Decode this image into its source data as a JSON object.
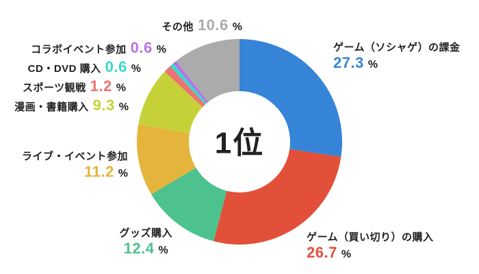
{
  "chart_data": {
    "type": "pie",
    "variant": "donut",
    "center_text": "1位",
    "unit": "%",
    "start_angle_deg": 0,
    "rotation": "clockwise",
    "inner_radius_ratio": 0.49,
    "background": "#ffffff",
    "label_text_color": "#1f1f1f",
    "legend_position": "callouts-around-donut",
    "segments": [
      {
        "id": "soshage",
        "label": "ゲーム（ソシャゲ）の課金",
        "value": 27.3,
        "color": "#3684D8"
      },
      {
        "id": "kaikiri",
        "label": "ゲーム（買い切り）の購入",
        "value": 26.7,
        "color": "#E2503A"
      },
      {
        "id": "goods",
        "label": "グッズ購入",
        "value": 12.4,
        "color": "#4EC28E"
      },
      {
        "id": "live",
        "label": "ライブ・イベント参加",
        "value": 11.2,
        "color": "#E5B43C"
      },
      {
        "id": "manga",
        "label": "漫画・書籍購入",
        "value": 9.3,
        "color": "#C6D138"
      },
      {
        "id": "sports",
        "label": "スポーツ観戦",
        "value": 1.2,
        "color": "#ED7372"
      },
      {
        "id": "cddvd",
        "label": "CD・DVD 購入",
        "value": 0.6,
        "color": "#37D9CC"
      },
      {
        "id": "collab",
        "label": "コラボイベント参加",
        "value": 0.6,
        "color": "#B873E3"
      },
      {
        "id": "other",
        "label": "その他",
        "value": 10.6,
        "color": "#ABABAB"
      }
    ]
  }
}
